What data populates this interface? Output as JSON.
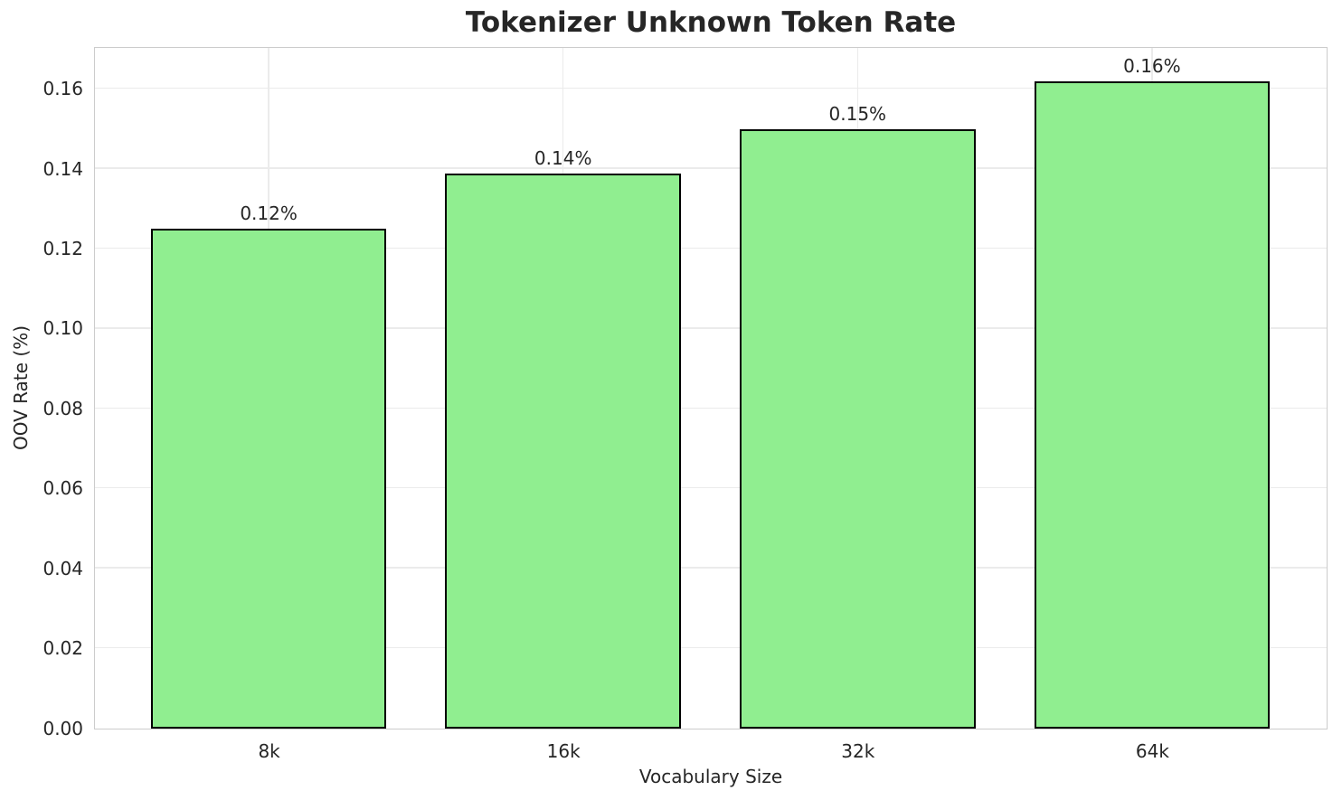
{
  "chart_data": {
    "type": "bar",
    "title": "Tokenizer Unknown Token Rate",
    "xlabel": "Vocabulary Size",
    "ylabel": "OOV Rate (%)",
    "categories": [
      "8k",
      "16k",
      "32k",
      "64k"
    ],
    "values": [
      0.125,
      0.139,
      0.15,
      0.162
    ],
    "bar_labels": [
      "0.12%",
      "0.14%",
      "0.15%",
      "0.16%"
    ],
    "ylim": [
      0,
      0.1701
    ],
    "yticks": [
      0.0,
      0.02,
      0.04,
      0.06,
      0.08,
      0.1,
      0.12,
      0.14,
      0.16
    ],
    "ytick_labels": [
      "0.00",
      "0.02",
      "0.04",
      "0.06",
      "0.08",
      "0.10",
      "0.12",
      "0.14",
      "0.16"
    ],
    "grid": true,
    "legend_position": "none",
    "colors": {
      "bar_fill": "#90EE90",
      "bar_edge": "#000000",
      "grid": "#ebebeb",
      "spine": "#cccccc",
      "text": "#262626",
      "background": "#ffffff"
    }
  }
}
